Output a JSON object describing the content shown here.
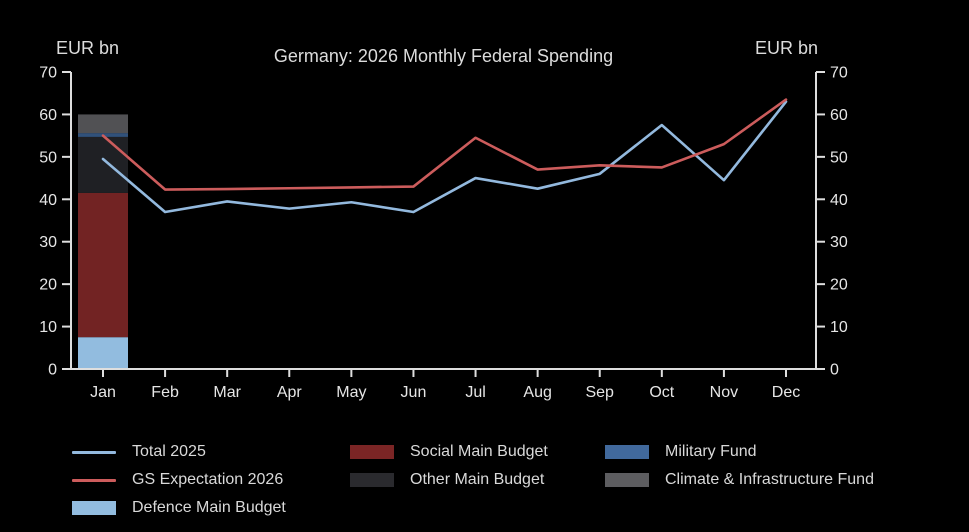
{
  "title": "Germany: 2026 Monthly Federal Spending",
  "axis_label_left": "EUR bn",
  "axis_label_right": "EUR bn",
  "chart_data": {
    "type": "line+stacked-bar",
    "title": "Germany: 2026 Monthly Federal Spending",
    "categories": [
      "Jan",
      "Feb",
      "Mar",
      "Apr",
      "May",
      "Jun",
      "Jul",
      "Aug",
      "Sep",
      "Oct",
      "Nov",
      "Dec"
    ],
    "ylabel_left": "EUR bn",
    "ylabel_right": "EUR bn",
    "ylim": [
      0,
      70
    ],
    "ytick_step": 10,
    "grid": false,
    "legend_position": "bottom",
    "series": [
      {
        "name": "Total 2025",
        "type": "line",
        "color": "#93b9de",
        "values": [
          49.5,
          37,
          39.5,
          37.8,
          39.3,
          37,
          45,
          42.5,
          46,
          57.5,
          44.5,
          63
        ]
      },
      {
        "name": "GS Expectation 2026",
        "type": "line",
        "color": "#cc5c5c",
        "values": [
          55,
          42.3,
          42.4,
          42.6,
          42.8,
          43,
          54.5,
          47,
          48,
          47.5,
          53,
          63.5
        ]
      }
    ],
    "stacked_bar": {
      "category": "Jan",
      "segments": [
        {
          "name": "Defence Main Budget",
          "color": "#92bcdf",
          "value": 7.5
        },
        {
          "name": "Social Main Budget",
          "color": "#722323",
          "value": 34
        },
        {
          "name": "Other Main Budget",
          "color": "#1f2024",
          "value": 13.2
        },
        {
          "name": "Military Fund",
          "color": "#31517a",
          "value": 0.9
        },
        {
          "name": "Climate & Infrastructure Fund",
          "color": "#515154",
          "value": 4.4
        }
      ]
    }
  },
  "legend": {
    "columns": [
      [
        {
          "label": "Total 2025",
          "swatch": "line",
          "color": "#93b9de"
        },
        {
          "label": "GS Expectation 2026",
          "swatch": "line",
          "color": "#cc5c5c"
        },
        {
          "label": "Defence Main Budget",
          "swatch": "box",
          "color": "#92bcdf"
        }
      ],
      [
        {
          "label": "Social Main Budget",
          "swatch": "box",
          "color": "#7b2525"
        },
        {
          "label": "Other Main Budget",
          "swatch": "box",
          "color": "#2a2a2e"
        }
      ],
      [
        {
          "label": "Military Fund",
          "swatch": "box",
          "color": "#41699c"
        },
        {
          "label": "Climate & Infrastructure Fund",
          "swatch": "box",
          "color": "#5d5d60"
        }
      ]
    ]
  }
}
